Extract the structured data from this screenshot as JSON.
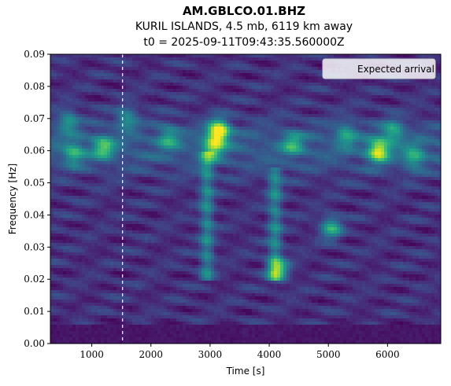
{
  "chart_data": {
    "type": "heatmap",
    "title": "AM.GBLCO.01.BHZ",
    "subtitle_lines": [
      "KURIL ISLANDS, 4.5 mb, 6119 km away",
      "t0 = 2025-09-11T09:43:35.560000Z"
    ],
    "xlabel": "Time [s]",
    "ylabel": "Frequency [Hz]",
    "xlim": [
      300,
      6900
    ],
    "ylim": [
      0.0,
      0.09
    ],
    "xticks": [
      1000,
      2000,
      3000,
      4000,
      5000,
      6000
    ],
    "xtick_labels": [
      "1000",
      "2000",
      "3000",
      "4000",
      "5000",
      "6000"
    ],
    "yticks": [
      0.0,
      0.01,
      0.02,
      0.03,
      0.04,
      0.05,
      0.06,
      0.07,
      0.08,
      0.09
    ],
    "ytick_labels": [
      "0.00",
      "0.01",
      "0.02",
      "0.03",
      "0.04",
      "0.05",
      "0.06",
      "0.07",
      "0.08",
      "0.09"
    ],
    "colormap": "viridis",
    "expected_arrival": {
      "time": 1520,
      "label": "Expected arrival",
      "color": "#ffffff",
      "style": "dashed"
    },
    "legend": {
      "position": "top-right",
      "entries": [
        "Expected arrival"
      ]
    },
    "hotspots": [
      {
        "time": 3150,
        "freq": 0.066,
        "intensity": 1.0
      },
      {
        "time": 5850,
        "freq": 0.06,
        "intensity": 0.85
      },
      {
        "time": 1200,
        "freq": 0.061,
        "intensity": 0.55
      },
      {
        "time": 4150,
        "freq": 0.023,
        "intensity": 0.6
      },
      {
        "time": 5050,
        "freq": 0.036,
        "intensity": 0.55
      },
      {
        "time": 3050,
        "freq": 0.061,
        "intensity": 0.6
      },
      {
        "time": 4400,
        "freq": 0.062,
        "intensity": 0.45
      },
      {
        "time": 6450,
        "freq": 0.058,
        "intensity": 0.45
      },
      {
        "time": 700,
        "freq": 0.059,
        "intensity": 0.45
      },
      {
        "time": 600,
        "freq": 0.069,
        "intensity": 0.4
      },
      {
        "time": 2300,
        "freq": 0.064,
        "intensity": 0.4
      },
      {
        "time": 1600,
        "freq": 0.07,
        "intensity": 0.4
      },
      {
        "time": 5300,
        "freq": 0.065,
        "intensity": 0.4
      },
      {
        "time": 6100,
        "freq": 0.066,
        "intensity": 0.45
      }
    ],
    "ridges": [
      {
        "time": 2950,
        "freq_min": 0.02,
        "freq_max": 0.06,
        "intensity": 0.3
      },
      {
        "time": 4100,
        "freq_min": 0.02,
        "freq_max": 0.055,
        "intensity": 0.3
      }
    ]
  }
}
